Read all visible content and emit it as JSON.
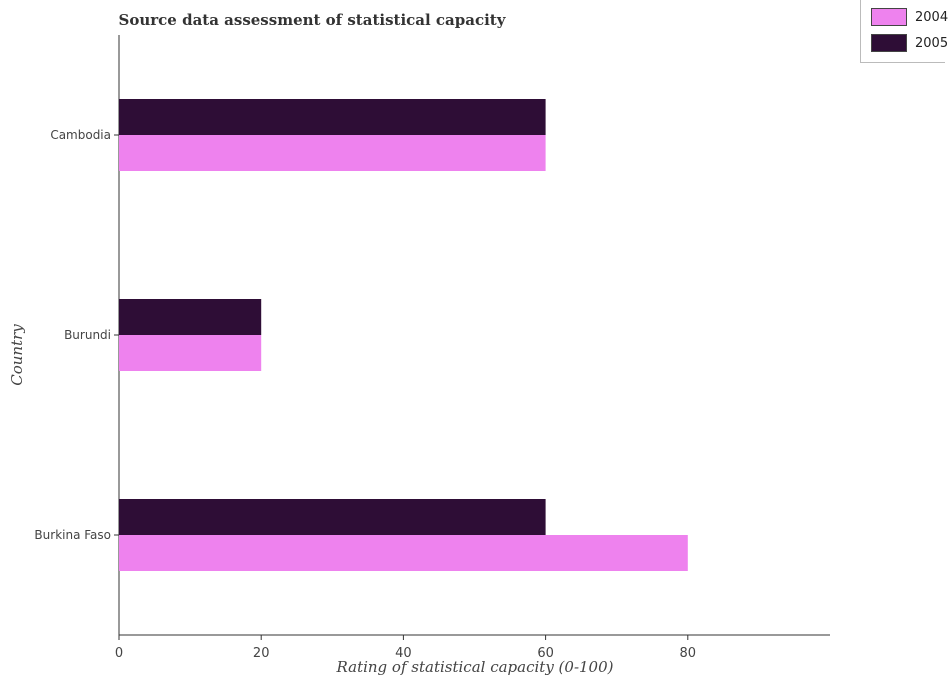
{
  "chart_data": {
    "type": "bar",
    "orientation": "horizontal",
    "title": "Source data assessment of statistical capacity",
    "xlabel": "Rating of statistical capacity (0-100)",
    "ylabel": "Country",
    "categories": [
      "Burkina Faso",
      "Burundi",
      "Cambodia"
    ],
    "series": [
      {
        "name": "2004",
        "color": "#ee82ee",
        "values": [
          80,
          20,
          60
        ]
      },
      {
        "name": "2005",
        "color": "#2e0d36",
        "values": [
          60,
          20,
          60
        ]
      }
    ],
    "xlim": [
      0,
      100
    ],
    "xticks": [
      "0",
      "20",
      "40",
      "60",
      "80"
    ],
    "legend_position": "top-right",
    "grid": false
  }
}
